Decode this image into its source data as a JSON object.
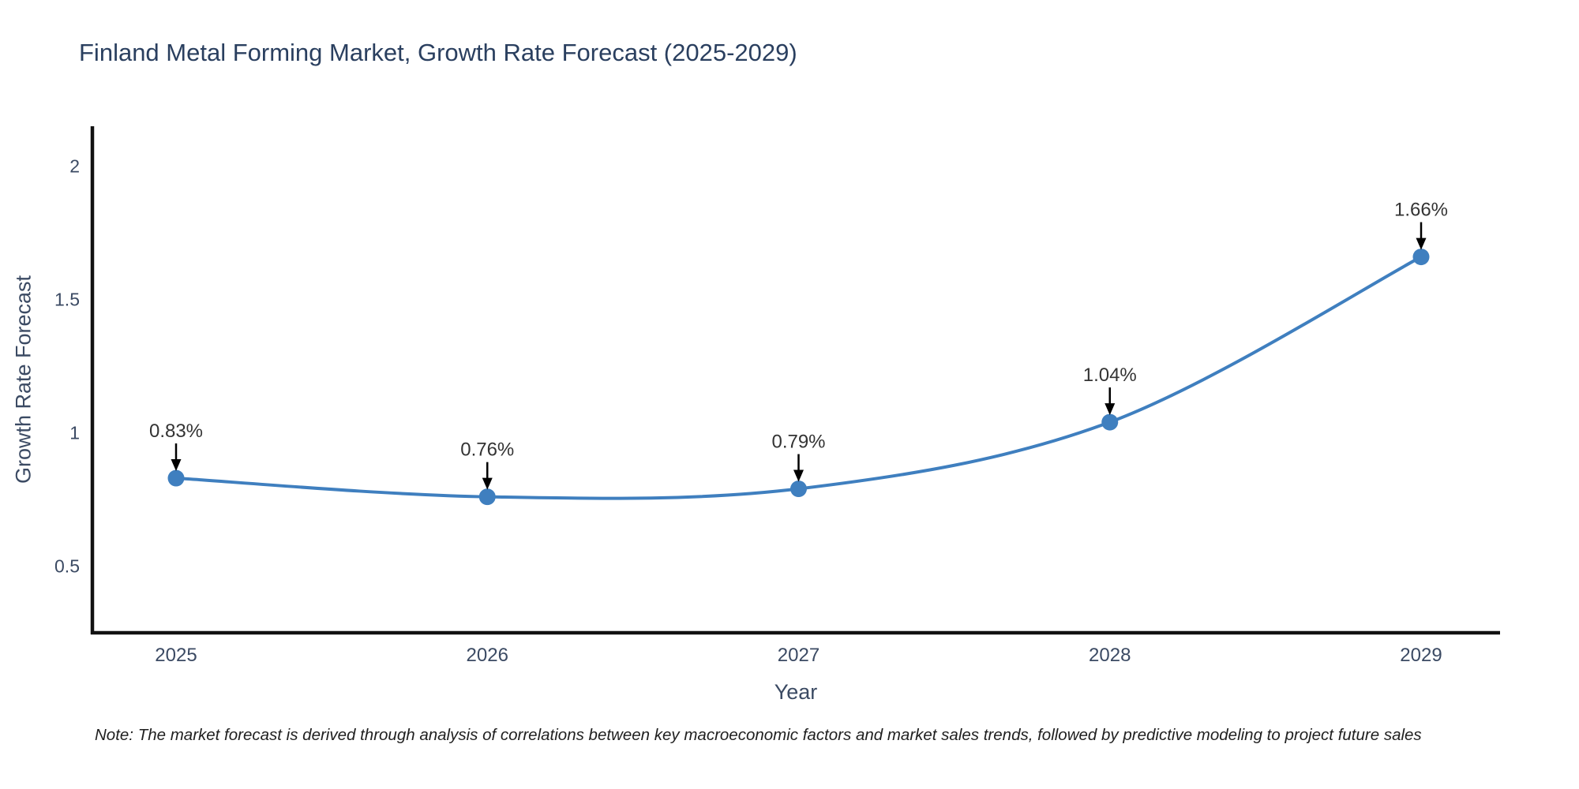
{
  "title": "Finland Metal Forming Market, Growth Rate Forecast (2025-2029)",
  "note": "Note: The market forecast is derived through analysis of correlations between key macroeconomic factors and market sales trends, followed by predictive modeling to project future sales",
  "colors": {
    "line": "#3f7fbf",
    "marker": "#3f7fbf",
    "title": "#2a3f5f",
    "tick": "#3b4a63",
    "axis": "#111111",
    "annotation_text": "#333333",
    "annotation_arrow": "#000000",
    "background": "#ffffff"
  },
  "chart_data": {
    "type": "line",
    "title": "Finland Metal Forming Market, Growth Rate Forecast (2025-2029)",
    "xlabel": "Year",
    "ylabel": "Growth Rate Forecast",
    "categories": [
      "2025",
      "2026",
      "2027",
      "2028",
      "2029"
    ],
    "series": [
      {
        "name": "Growth Rate Forecast",
        "values": [
          0.83,
          0.76,
          0.79,
          1.04,
          1.66
        ]
      }
    ],
    "point_labels": [
      "0.83%",
      "0.76%",
      "0.79%",
      "1.04%",
      "1.66%"
    ],
    "yticks": [
      0.5,
      1,
      1.5,
      2
    ],
    "ylim": [
      0.25,
      2.15
    ],
    "grid": false,
    "legend": "none",
    "line_shape": "spline",
    "annotations": "value labels with downward arrows above each point"
  }
}
